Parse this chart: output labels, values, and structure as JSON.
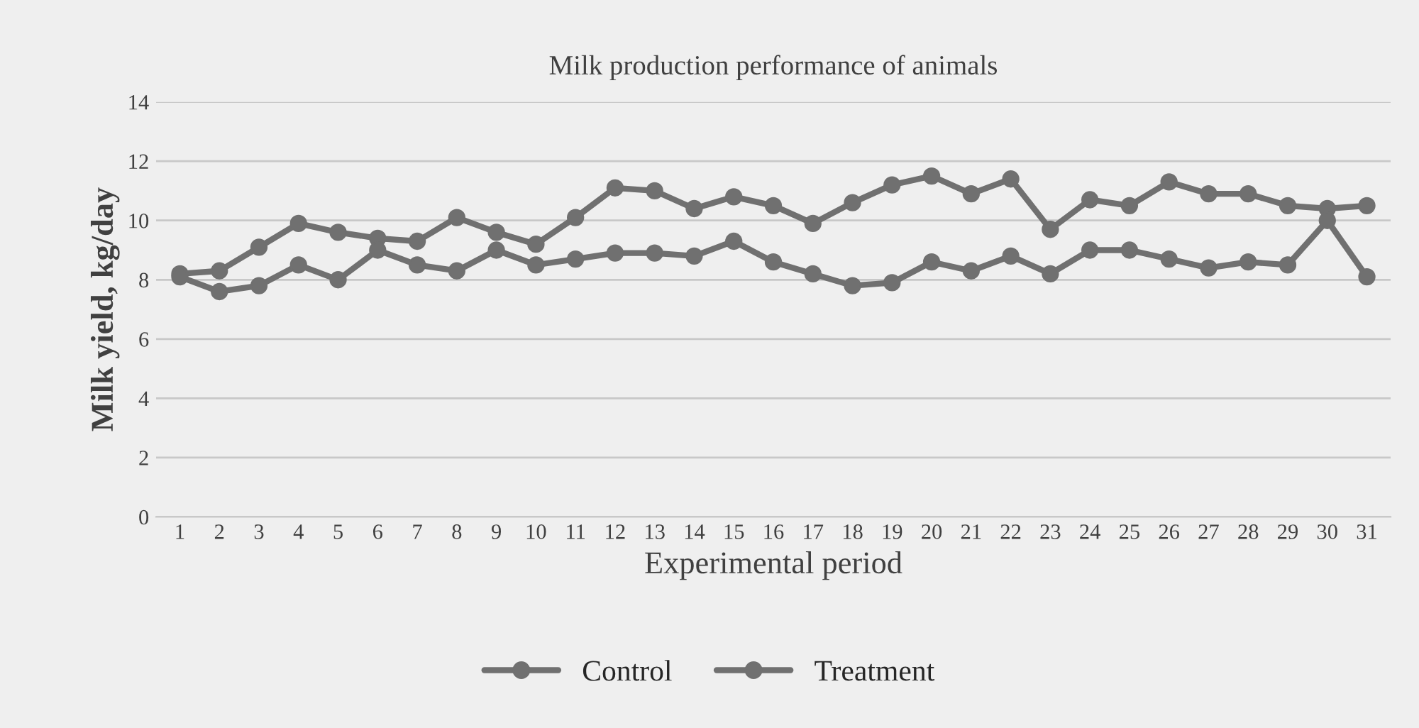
{
  "chart_data": {
    "type": "line",
    "title": "Milk production performance of animals",
    "xlabel": "Experimental period",
    "ylabel": "Milk yield, kg/day",
    "categories": [
      "1",
      "2",
      "3",
      "4",
      "5",
      "6",
      "7",
      "8",
      "9",
      "10",
      "11",
      "12",
      "13",
      "14",
      "15",
      "16",
      "17",
      "18",
      "19",
      "20",
      "21",
      "22",
      "23",
      "24",
      "25",
      "26",
      "27",
      "28",
      "29",
      "30",
      "31"
    ],
    "series": [
      {
        "name": "Control",
        "color": "#707070",
        "values": [
          8.1,
          7.6,
          7.8,
          8.5,
          8.0,
          9.0,
          8.5,
          8.3,
          9.0,
          8.5,
          8.7,
          8.9,
          8.9,
          8.8,
          9.3,
          8.6,
          8.2,
          7.8,
          7.9,
          8.6,
          8.3,
          8.8,
          8.2,
          9.0,
          9.0,
          8.7,
          8.4,
          8.6,
          8.5,
          10.0,
          8.1
        ]
      },
      {
        "name": "Treatment",
        "color": "#707070",
        "values": [
          8.2,
          8.3,
          9.1,
          9.9,
          9.6,
          9.4,
          9.3,
          10.1,
          9.6,
          9.2,
          10.1,
          11.1,
          11.0,
          10.4,
          10.8,
          10.5,
          9.9,
          10.6,
          11.2,
          11.5,
          10.9,
          11.4,
          9.7,
          10.7,
          10.5,
          11.3,
          10.9,
          10.9,
          10.5,
          10.4,
          10.5
        ]
      }
    ],
    "ylim": [
      0,
      14
    ],
    "yticks": [
      0,
      2,
      4,
      6,
      8,
      10,
      12,
      14
    ],
    "grid": "y",
    "legend": "bottom",
    "marker": "circle",
    "line_style": "solid"
  }
}
